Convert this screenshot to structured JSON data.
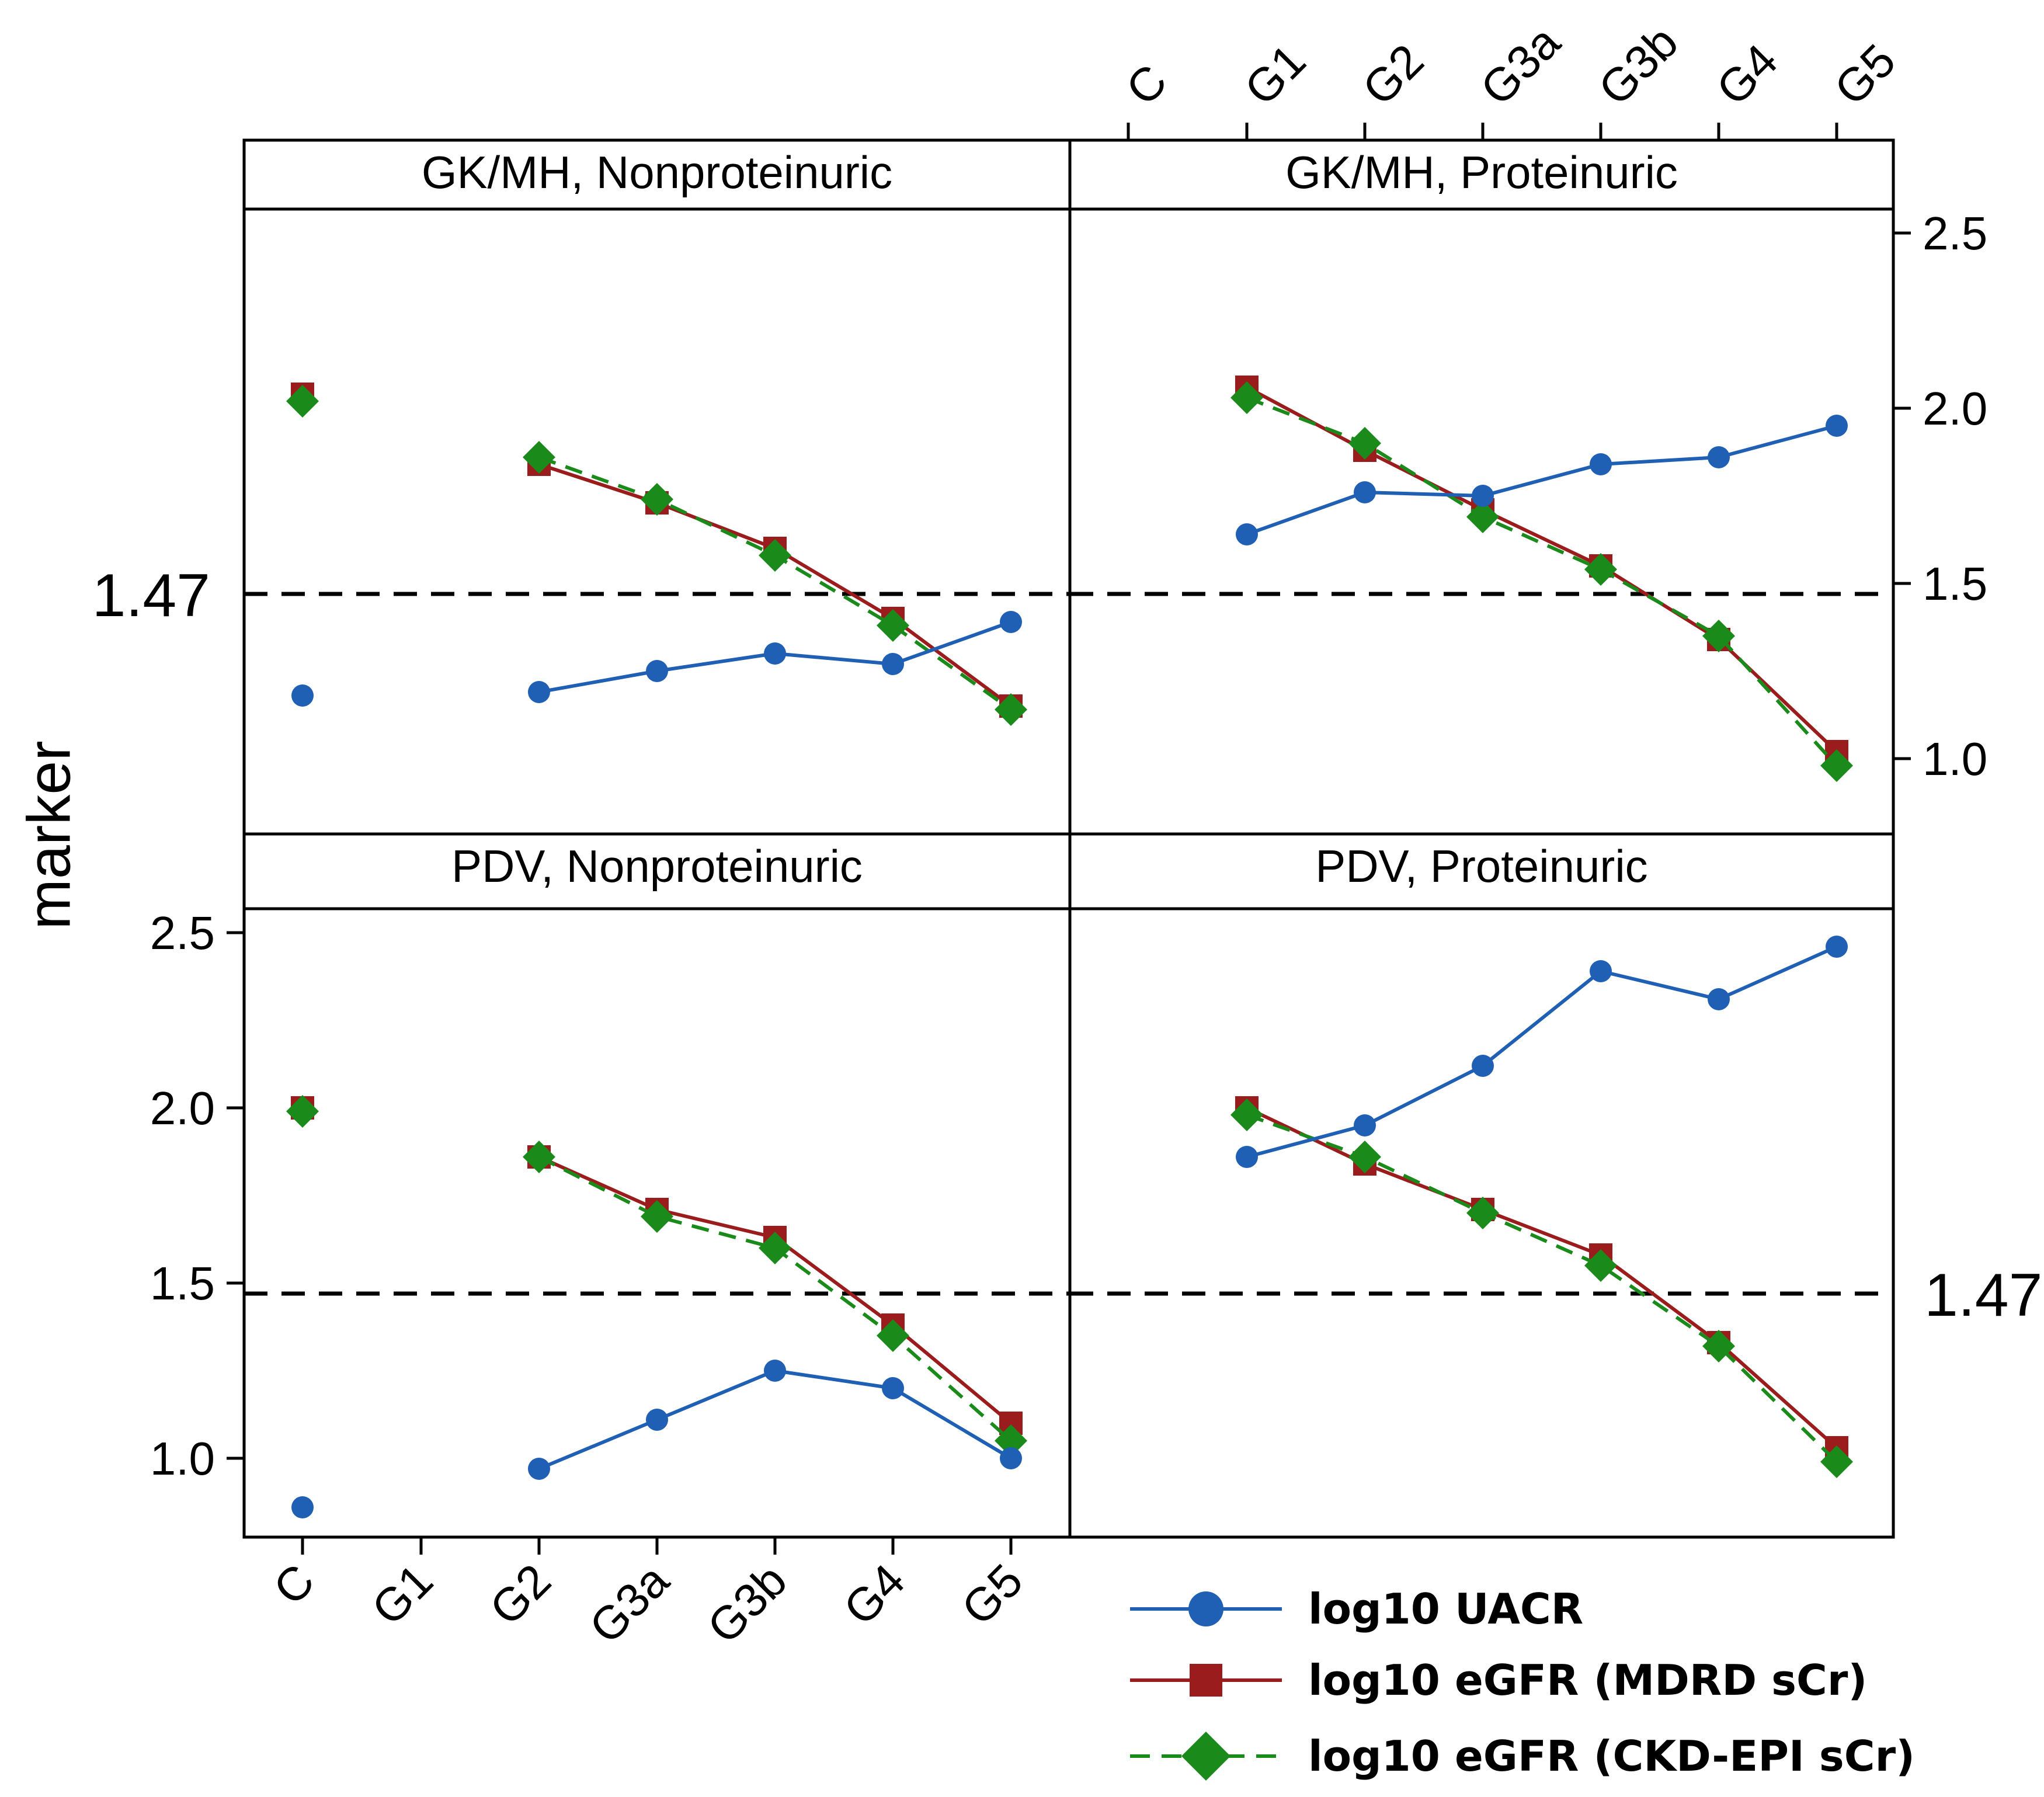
{
  "chart_data": {
    "type": "line",
    "ylabel": "marker",
    "categories": [
      "C",
      "G1",
      "G2",
      "G3a",
      "G3b",
      "G4",
      "G5"
    ],
    "ylim": [
      0.8,
      2.5
    ],
    "yticks": [
      "1.0",
      "1.5",
      "2.0",
      "2.5"
    ],
    "reference_line": {
      "value": 1.47,
      "label": "1.47"
    },
    "series_styles": [
      {
        "key": "uacr",
        "name": "log10 UACR",
        "color": "#1f5fb4",
        "marker": "circle",
        "dash": "solid"
      },
      {
        "key": "mdrd",
        "name": "log10 eGFR (MDRD sCr)",
        "color": "#9b1c1c",
        "marker": "square",
        "dash": "solid"
      },
      {
        "key": "ckd",
        "name": "log10 eGFR (CKD-EPI sCr)",
        "color": "#1a8a1a",
        "marker": "diamond",
        "dash": "dashed"
      }
    ],
    "panels": [
      {
        "title": "GK/MH, Nonproteinuric",
        "series": {
          "uacr": [
            1.18,
            null,
            1.19,
            1.25,
            1.3,
            1.27,
            1.39
          ],
          "mdrd": [
            2.04,
            null,
            1.84,
            1.73,
            1.6,
            1.4,
            1.15
          ],
          "ckd": [
            2.02,
            null,
            1.86,
            1.74,
            1.58,
            1.38,
            1.14
          ]
        }
      },
      {
        "title": "GK/MH, Proteinuric",
        "series": {
          "uacr": [
            null,
            1.64,
            1.76,
            1.75,
            1.84,
            1.86,
            1.95
          ],
          "mdrd": [
            null,
            2.06,
            1.88,
            1.71,
            1.55,
            1.34,
            1.02
          ],
          "ckd": [
            null,
            2.03,
            1.9,
            1.69,
            1.54,
            1.35,
            0.98
          ]
        }
      },
      {
        "title": "PDV, Nonproteinuric",
        "series": {
          "uacr": [
            0.86,
            null,
            0.97,
            1.11,
            1.25,
            1.2,
            1.0
          ],
          "mdrd": [
            2.0,
            null,
            1.86,
            1.71,
            1.63,
            1.38,
            1.1
          ],
          "ckd": [
            1.99,
            null,
            1.86,
            1.69,
            1.6,
            1.35,
            1.05
          ]
        }
      },
      {
        "title": "PDV, Proteinuric",
        "series": {
          "uacr": [
            null,
            1.86,
            1.95,
            2.12,
            2.39,
            2.31,
            2.46
          ],
          "mdrd": [
            null,
            2.0,
            1.84,
            1.71,
            1.58,
            1.33,
            1.03
          ],
          "ckd": [
            null,
            1.98,
            1.86,
            1.7,
            1.55,
            1.32,
            0.99
          ]
        }
      }
    ]
  }
}
